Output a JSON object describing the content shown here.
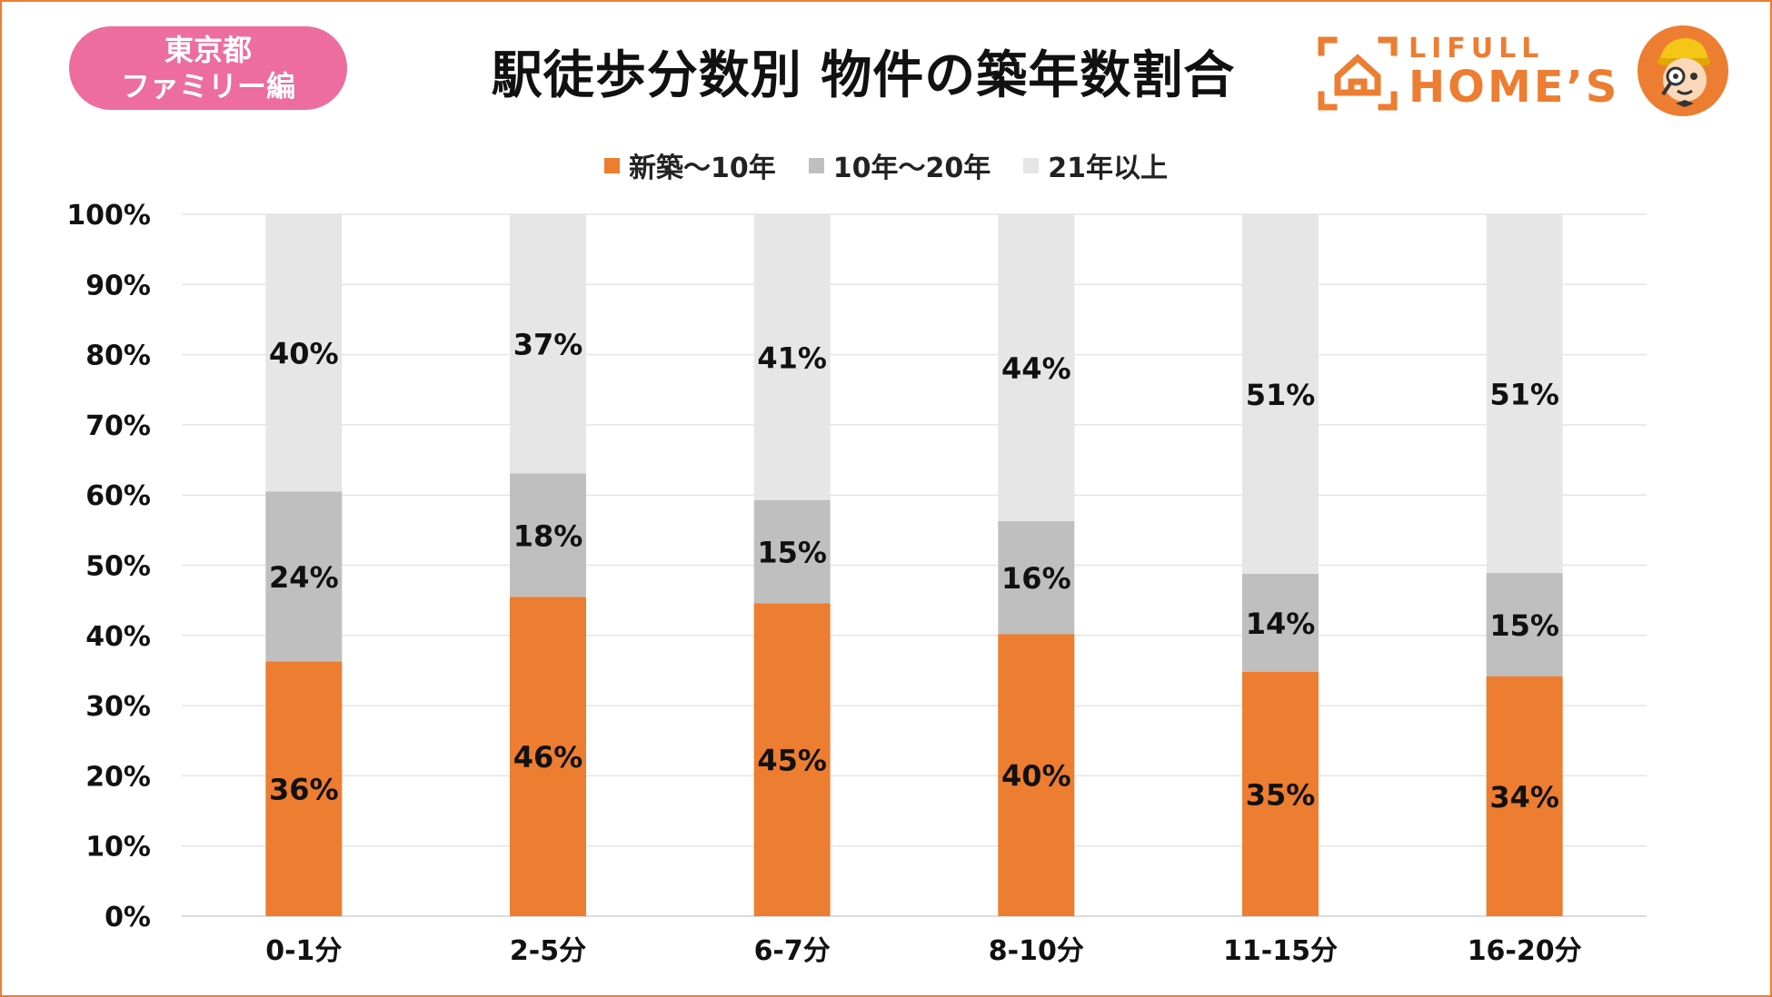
{
  "badge": {
    "line1": "東京都",
    "line2": "ファミリー編"
  },
  "logo": {
    "small": "LIFULL",
    "big": "HOME’S"
  },
  "colors": {
    "accent": "#ED7D31",
    "badge": "#EC6D9E"
  },
  "chart_data": {
    "type": "bar",
    "stacked": true,
    "title": "駅徒歩分数別 物件の築年数割合",
    "xlabel": "",
    "ylabel": "",
    "ylim": [
      0,
      100
    ],
    "yticks": [
      "0%",
      "10%",
      "20%",
      "30%",
      "40%",
      "50%",
      "60%",
      "70%",
      "80%",
      "90%",
      "100%"
    ],
    "categories": [
      "0-1分",
      "2-5分",
      "6-7分",
      "8-10分",
      "11-15分",
      "16-20分"
    ],
    "legend_position": "top",
    "grid": true,
    "series": [
      {
        "name": "新築～10年",
        "color": "#ED7D31",
        "values": [
          36.3,
          45.5,
          44.6,
          40.2,
          34.8,
          34.2
        ],
        "labels": [
          "36%",
          "46%",
          "45%",
          "40%",
          "35%",
          "34%"
        ]
      },
      {
        "name": "10年～20年",
        "color": "#BFBFBF",
        "values": [
          24.2,
          17.6,
          14.7,
          16.1,
          14.0,
          14.7
        ],
        "labels": [
          "24%",
          "18%",
          "15%",
          "16%",
          "14%",
          "15%"
        ]
      },
      {
        "name": "21年以上",
        "color": "#E7E6E6",
        "values": [
          39.5,
          36.9,
          40.7,
          43.7,
          51.2,
          51.1
        ],
        "labels": [
          "40%",
          "37%",
          "41%",
          "44%",
          "51%",
          "51%"
        ]
      }
    ]
  }
}
